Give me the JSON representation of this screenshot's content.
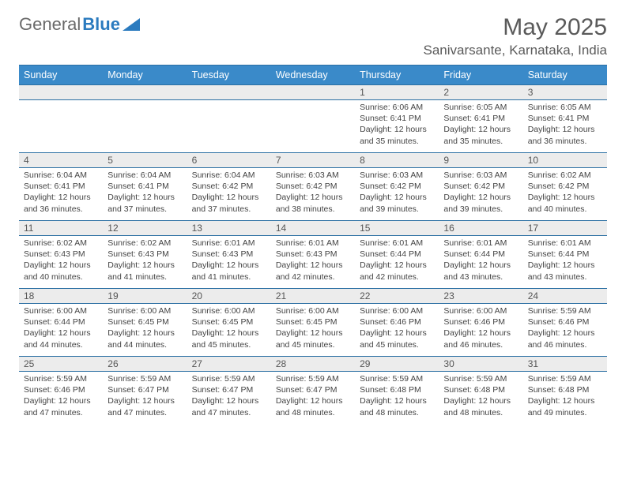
{
  "brand": {
    "part1": "General",
    "part2": "Blue"
  },
  "title": "May 2025",
  "location": "Sanivarsante, Karnataka, India",
  "colors": {
    "header_bg": "#3a8ac9",
    "header_text": "#ffffff",
    "border": "#2b6fa3",
    "daynum_bg": "#ececec",
    "body_text": "#444444",
    "title_text": "#5a5a5a",
    "logo_gray": "#6a6a6a",
    "logo_blue": "#2b7bbf"
  },
  "weekdays": [
    "Sunday",
    "Monday",
    "Tuesday",
    "Wednesday",
    "Thursday",
    "Friday",
    "Saturday"
  ],
  "weeks": [
    [
      null,
      null,
      null,
      null,
      {
        "n": "1",
        "sr": "6:06 AM",
        "ss": "6:41 PM",
        "dl": "12 hours and 35 minutes."
      },
      {
        "n": "2",
        "sr": "6:05 AM",
        "ss": "6:41 PM",
        "dl": "12 hours and 35 minutes."
      },
      {
        "n": "3",
        "sr": "6:05 AM",
        "ss": "6:41 PM",
        "dl": "12 hours and 36 minutes."
      }
    ],
    [
      {
        "n": "4",
        "sr": "6:04 AM",
        "ss": "6:41 PM",
        "dl": "12 hours and 36 minutes."
      },
      {
        "n": "5",
        "sr": "6:04 AM",
        "ss": "6:41 PM",
        "dl": "12 hours and 37 minutes."
      },
      {
        "n": "6",
        "sr": "6:04 AM",
        "ss": "6:42 PM",
        "dl": "12 hours and 37 minutes."
      },
      {
        "n": "7",
        "sr": "6:03 AM",
        "ss": "6:42 PM",
        "dl": "12 hours and 38 minutes."
      },
      {
        "n": "8",
        "sr": "6:03 AM",
        "ss": "6:42 PM",
        "dl": "12 hours and 39 minutes."
      },
      {
        "n": "9",
        "sr": "6:03 AM",
        "ss": "6:42 PM",
        "dl": "12 hours and 39 minutes."
      },
      {
        "n": "10",
        "sr": "6:02 AM",
        "ss": "6:42 PM",
        "dl": "12 hours and 40 minutes."
      }
    ],
    [
      {
        "n": "11",
        "sr": "6:02 AM",
        "ss": "6:43 PM",
        "dl": "12 hours and 40 minutes."
      },
      {
        "n": "12",
        "sr": "6:02 AM",
        "ss": "6:43 PM",
        "dl": "12 hours and 41 minutes."
      },
      {
        "n": "13",
        "sr": "6:01 AM",
        "ss": "6:43 PM",
        "dl": "12 hours and 41 minutes."
      },
      {
        "n": "14",
        "sr": "6:01 AM",
        "ss": "6:43 PM",
        "dl": "12 hours and 42 minutes."
      },
      {
        "n": "15",
        "sr": "6:01 AM",
        "ss": "6:44 PM",
        "dl": "12 hours and 42 minutes."
      },
      {
        "n": "16",
        "sr": "6:01 AM",
        "ss": "6:44 PM",
        "dl": "12 hours and 43 minutes."
      },
      {
        "n": "17",
        "sr": "6:01 AM",
        "ss": "6:44 PM",
        "dl": "12 hours and 43 minutes."
      }
    ],
    [
      {
        "n": "18",
        "sr": "6:00 AM",
        "ss": "6:44 PM",
        "dl": "12 hours and 44 minutes."
      },
      {
        "n": "19",
        "sr": "6:00 AM",
        "ss": "6:45 PM",
        "dl": "12 hours and 44 minutes."
      },
      {
        "n": "20",
        "sr": "6:00 AM",
        "ss": "6:45 PM",
        "dl": "12 hours and 45 minutes."
      },
      {
        "n": "21",
        "sr": "6:00 AM",
        "ss": "6:45 PM",
        "dl": "12 hours and 45 minutes."
      },
      {
        "n": "22",
        "sr": "6:00 AM",
        "ss": "6:46 PM",
        "dl": "12 hours and 45 minutes."
      },
      {
        "n": "23",
        "sr": "6:00 AM",
        "ss": "6:46 PM",
        "dl": "12 hours and 46 minutes."
      },
      {
        "n": "24",
        "sr": "5:59 AM",
        "ss": "6:46 PM",
        "dl": "12 hours and 46 minutes."
      }
    ],
    [
      {
        "n": "25",
        "sr": "5:59 AM",
        "ss": "6:46 PM",
        "dl": "12 hours and 47 minutes."
      },
      {
        "n": "26",
        "sr": "5:59 AM",
        "ss": "6:47 PM",
        "dl": "12 hours and 47 minutes."
      },
      {
        "n": "27",
        "sr": "5:59 AM",
        "ss": "6:47 PM",
        "dl": "12 hours and 47 minutes."
      },
      {
        "n": "28",
        "sr": "5:59 AM",
        "ss": "6:47 PM",
        "dl": "12 hours and 48 minutes."
      },
      {
        "n": "29",
        "sr": "5:59 AM",
        "ss": "6:48 PM",
        "dl": "12 hours and 48 minutes."
      },
      {
        "n": "30",
        "sr": "5:59 AM",
        "ss": "6:48 PM",
        "dl": "12 hours and 48 minutes."
      },
      {
        "n": "31",
        "sr": "5:59 AM",
        "ss": "6:48 PM",
        "dl": "12 hours and 49 minutes."
      }
    ]
  ],
  "labels": {
    "sunrise": "Sunrise:",
    "sunset": "Sunset:",
    "daylight": "Daylight:"
  }
}
